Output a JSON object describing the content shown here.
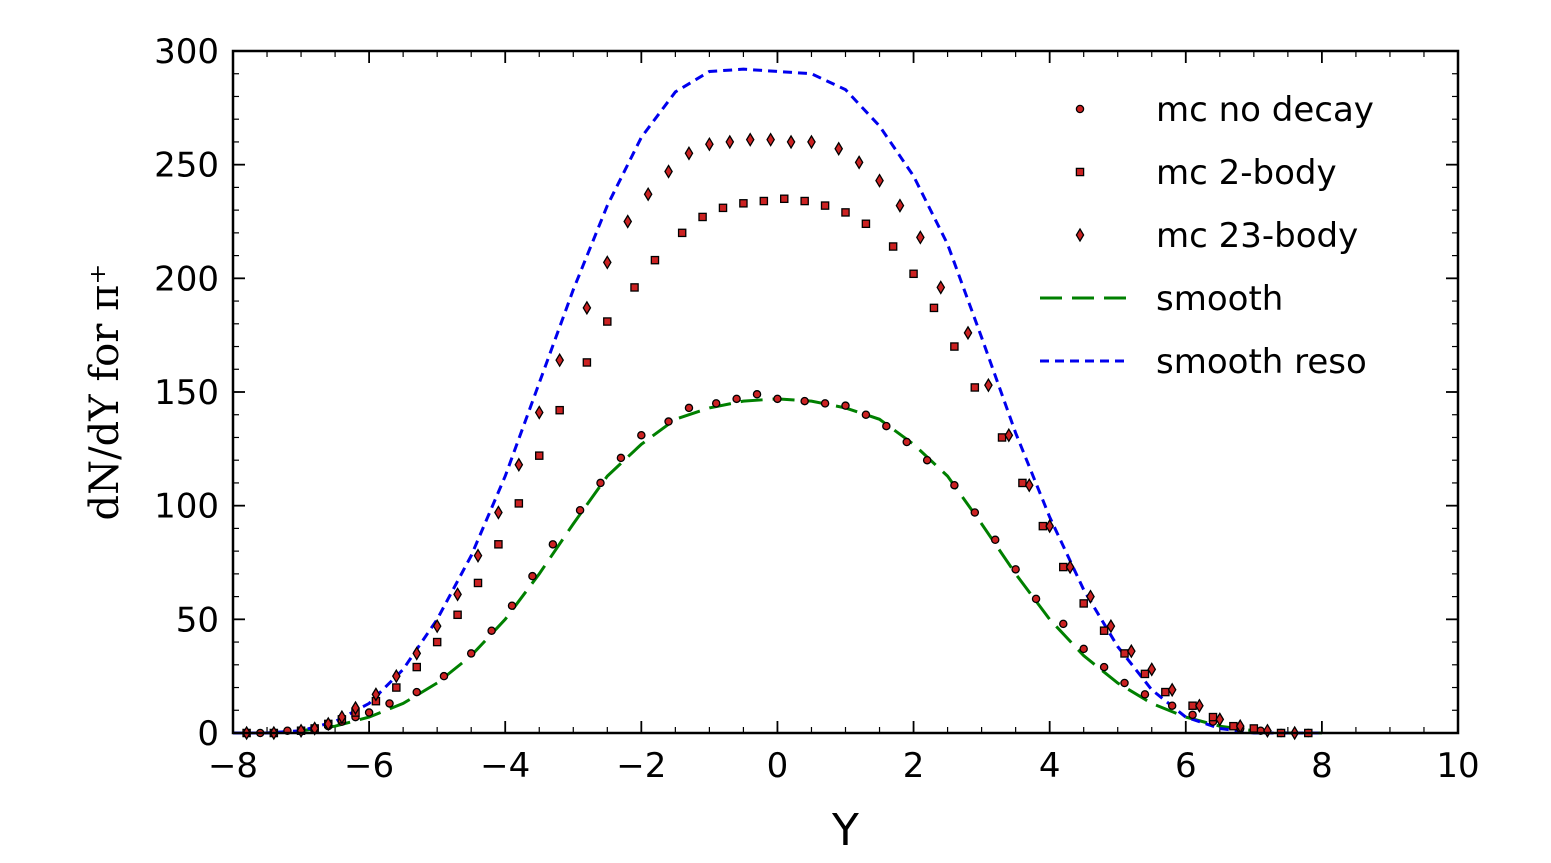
{
  "chart_data": {
    "type": "scatter",
    "xlabel": "Y",
    "ylabel": "dN/dY for π⁺",
    "xlim": [
      -8,
      10
    ],
    "ylim": [
      0,
      300
    ],
    "xticks": [
      -8,
      -6,
      -4,
      -2,
      0,
      2,
      4,
      6,
      8,
      10
    ],
    "yticks": [
      0,
      50,
      100,
      150,
      200,
      250,
      300
    ],
    "xtick_labels": [
      "−8",
      "−6",
      "−4",
      "−2",
      "0",
      "2",
      "4",
      "6",
      "8",
      "10"
    ],
    "ytick_labels": [
      "0",
      "50",
      "100",
      "150",
      "200",
      "250",
      "300"
    ],
    "grid": false,
    "legend_position": "top-right",
    "series": [
      {
        "name": "mc no decay",
        "kind": "marker",
        "marker": "circle",
        "color": "#cc2222",
        "x": [
          -7.8,
          -7.6,
          -7.2,
          -6.8,
          -6.6,
          -6.4,
          -6.2,
          -6.0,
          -5.7,
          -5.3,
          -4.9,
          -4.5,
          -4.2,
          -3.9,
          -3.6,
          -3.3,
          -2.9,
          -2.6,
          -2.3,
          -2.0,
          -1.6,
          -1.3,
          -0.9,
          -0.6,
          -0.3,
          0.0,
          0.4,
          0.7,
          1.0,
          1.3,
          1.6,
          1.9,
          2.2,
          2.6,
          2.9,
          3.2,
          3.5,
          3.8,
          4.2,
          4.5,
          4.8,
          5.1,
          5.4,
          5.8,
          6.1,
          6.4,
          6.8,
          7.1,
          7.4,
          7.8
        ],
        "y": [
          0,
          0,
          1,
          2,
          3,
          5,
          7,
          9,
          13,
          18,
          25,
          35,
          45,
          56,
          69,
          83,
          98,
          110,
          121,
          131,
          137,
          143,
          145,
          147,
          149,
          147,
          146,
          145,
          144,
          140,
          135,
          128,
          120,
          109,
          97,
          85,
          72,
          59,
          48,
          37,
          29,
          22,
          17,
          12,
          8,
          5,
          2,
          1,
          0,
          0
        ]
      },
      {
        "name": "mc 2-body",
        "kind": "marker",
        "marker": "square",
        "color": "#cc2222",
        "x": [
          -7.8,
          -7.4,
          -7.0,
          -6.8,
          -6.6,
          -6.4,
          -6.2,
          -5.9,
          -5.6,
          -5.3,
          -5.0,
          -4.7,
          -4.4,
          -4.1,
          -3.8,
          -3.5,
          -3.2,
          -2.8,
          -2.5,
          -2.1,
          -1.8,
          -1.4,
          -1.1,
          -0.8,
          -0.5,
          -0.2,
          0.1,
          0.4,
          0.7,
          1.0,
          1.3,
          1.7,
          2.0,
          2.3,
          2.6,
          2.9,
          3.3,
          3.6,
          3.9,
          4.2,
          4.5,
          4.8,
          5.1,
          5.4,
          5.7,
          6.1,
          6.4,
          6.7,
          7.0,
          7.4,
          7.8
        ],
        "y": [
          0,
          0,
          1,
          2,
          4,
          6,
          9,
          14,
          20,
          29,
          40,
          52,
          66,
          83,
          101,
          122,
          142,
          163,
          181,
          196,
          208,
          220,
          227,
          231,
          233,
          234,
          235,
          234,
          232,
          229,
          224,
          214,
          202,
          187,
          170,
          152,
          130,
          110,
          91,
          73,
          57,
          45,
          35,
          26,
          18,
          12,
          7,
          3,
          2,
          0,
          0
        ]
      },
      {
        "name": "mc 23-body",
        "kind": "marker",
        "marker": "diamond",
        "color": "#cc2222",
        "x": [
          -7.8,
          -7.4,
          -7.0,
          -6.8,
          -6.6,
          -6.4,
          -6.2,
          -5.9,
          -5.6,
          -5.3,
          -5.0,
          -4.7,
          -4.4,
          -4.1,
          -3.8,
          -3.5,
          -3.2,
          -2.8,
          -2.5,
          -2.2,
          -1.9,
          -1.6,
          -1.3,
          -1.0,
          -0.7,
          -0.4,
          -0.1,
          0.2,
          0.5,
          0.9,
          1.2,
          1.5,
          1.8,
          2.1,
          2.4,
          2.8,
          3.1,
          3.4,
          3.7,
          4.0,
          4.3,
          4.6,
          4.9,
          5.2,
          5.5,
          5.8,
          6.2,
          6.5,
          6.8,
          7.2,
          7.6
        ],
        "y": [
          0,
          0,
          1,
          2,
          4,
          7,
          11,
          17,
          25,
          35,
          47,
          61,
          78,
          97,
          118,
          141,
          164,
          187,
          207,
          225,
          237,
          247,
          255,
          259,
          260,
          261,
          261,
          260,
          260,
          257,
          251,
          243,
          232,
          218,
          196,
          176,
          153,
          131,
          109,
          91,
          73,
          60,
          47,
          36,
          28,
          19,
          12,
          6,
          3,
          1,
          0
        ]
      },
      {
        "name": "smooth",
        "kind": "line",
        "dash": "long",
        "color": "#008000",
        "x": [
          -8,
          -7.5,
          -7,
          -6.5,
          -6,
          -5.5,
          -5,
          -4.5,
          -4,
          -3.5,
          -3,
          -2.5,
          -2,
          -1.5,
          -1,
          -0.5,
          0,
          0.5,
          1,
          1.5,
          2,
          2.5,
          3,
          3.5,
          4,
          4.5,
          5,
          5.5,
          6,
          6.5,
          7,
          7.5,
          8
        ],
        "y": [
          0,
          0,
          1,
          3,
          7,
          13,
          22,
          34,
          50,
          70,
          92,
          113,
          127,
          138,
          143,
          146,
          147,
          146,
          143,
          138,
          127,
          113,
          92,
          70,
          50,
          34,
          22,
          13,
          7,
          3,
          1,
          0,
          0
        ]
      },
      {
        "name": "smooth reso",
        "kind": "line",
        "dash": "short",
        "color": "#0000ee",
        "x": [
          -8,
          -7.5,
          -7,
          -6.5,
          -6,
          -5.5,
          -5,
          -4.5,
          -4,
          -3.5,
          -3,
          -2.5,
          -2,
          -1.5,
          -1,
          -0.5,
          0,
          0.5,
          1,
          1.5,
          2,
          2.5,
          3,
          3.5,
          4,
          4.5,
          5,
          5.5,
          6,
          6.5,
          7,
          7.5,
          8
        ],
        "y": [
          0,
          0,
          1,
          5,
          13,
          28,
          50,
          78,
          113,
          154,
          195,
          232,
          262,
          282,
          291,
          292,
          291,
          290,
          283,
          267,
          245,
          215,
          174,
          132,
          95,
          63,
          38,
          19,
          7,
          2,
          0,
          0,
          0
        ]
      }
    ]
  }
}
